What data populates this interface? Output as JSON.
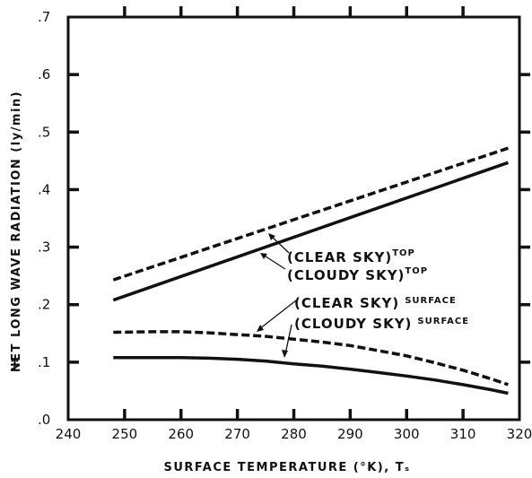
{
  "chart_data": {
    "type": "line",
    "xlabel": "SURFACE TEMPERATURE (°K), Tₛ",
    "ylabel": "NET LONG WAVE RADIATION (ly/min)",
    "ylabel_arrow": "→",
    "xlim": [
      240,
      320
    ],
    "ylim": [
      0,
      0.7
    ],
    "xticks": [
      240,
      250,
      260,
      270,
      280,
      290,
      300,
      310,
      320
    ],
    "yticks": [
      0,
      0.1,
      0.2,
      0.3,
      0.4,
      0.5,
      0.6,
      0.7
    ],
    "ytick_labels": [
      ".0",
      ".1",
      ".2",
      ".3",
      ".4",
      ".5",
      ".6",
      ".7"
    ],
    "grid": false,
    "series": [
      {
        "name": "(CLEAR SKY) TOP",
        "style": "dashed",
        "x": [
          248,
          318
        ],
        "y": [
          0.243,
          0.472
        ]
      },
      {
        "name": "(CLOUDY SKY) TOP",
        "style": "solid",
        "x": [
          248,
          318
        ],
        "y": [
          0.208,
          0.447
        ]
      },
      {
        "name": "(CLEAR SKY) SURFACE",
        "style": "dashed",
        "x": [
          248,
          255,
          260,
          265,
          270,
          275,
          280,
          285,
          290,
          295,
          300,
          305,
          310,
          315,
          318
        ],
        "y": [
          0.152,
          0.153,
          0.153,
          0.151,
          0.148,
          0.145,
          0.14,
          0.135,
          0.129,
          0.12,
          0.111,
          0.099,
          0.086,
          0.071,
          0.061
        ]
      },
      {
        "name": "(CLOUDY SKY) SURFACE",
        "style": "solid",
        "x": [
          248,
          255,
          260,
          265,
          270,
          275,
          280,
          285,
          290,
          295,
          300,
          305,
          310,
          315,
          318
        ],
        "y": [
          0.108,
          0.108,
          0.108,
          0.107,
          0.105,
          0.102,
          0.097,
          0.093,
          0.088,
          0.082,
          0.076,
          0.069,
          0.061,
          0.052,
          0.046
        ]
      }
    ],
    "annotations": [
      {
        "main": "(CLEAR SKY)",
        "sup": "TOP"
      },
      {
        "main": "(CLOUDY SKY)",
        "sup": "TOP"
      },
      {
        "main": "(CLEAR SKY)",
        "sup": "SURFACE"
      },
      {
        "main": "(CLOUDY SKY)",
        "sup": "SURFACE"
      }
    ]
  }
}
